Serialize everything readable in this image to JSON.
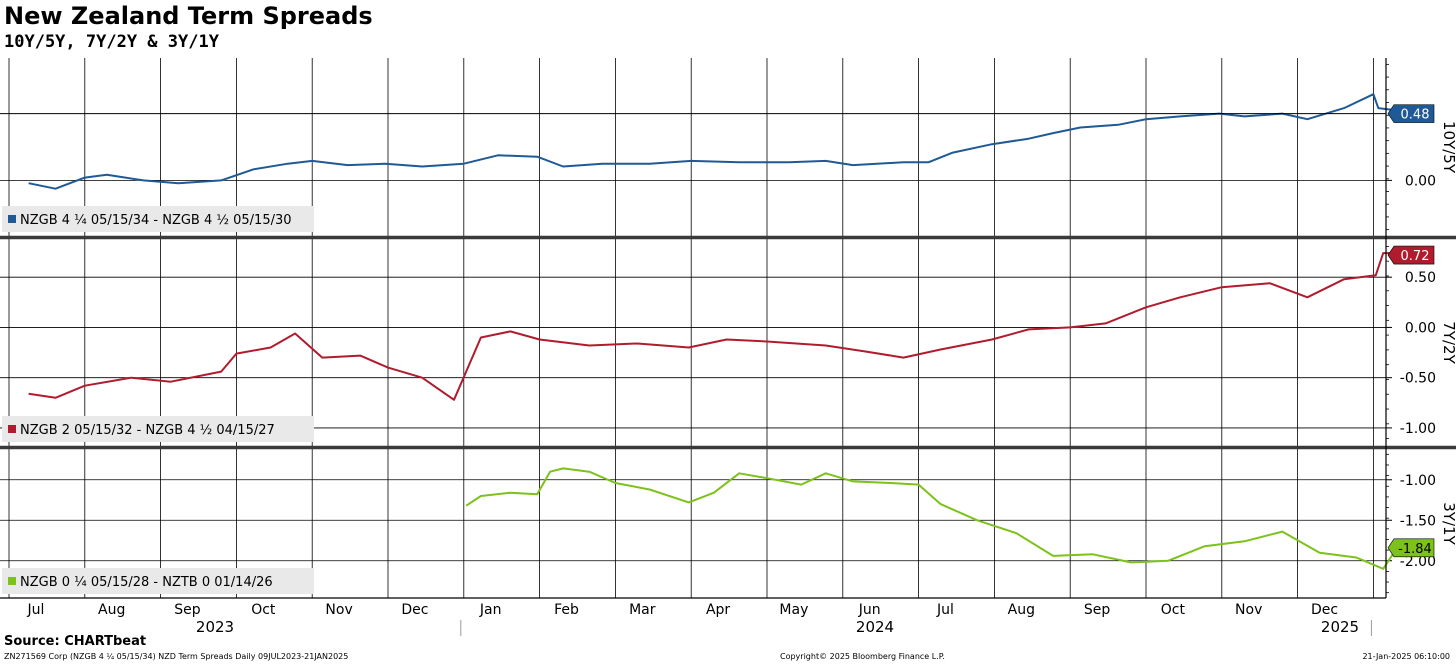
{
  "title": "New Zealand Term Spreads",
  "subtitle": "10Y/5Y, 7Y/2Y & 3Y/1Y",
  "source": "Source: CHARTbeat",
  "footer": {
    "left": "ZN271569 Corp (NZGB 4 ¼ 05/15/34) NZD Term Spreads  Daily 09JUL2023-21JAN2025",
    "center": "Copyright© 2025 Bloomberg Finance L.P.",
    "right": "21-Jan-2025 06:10:00"
  },
  "colors": {
    "top": "#1f5a96",
    "mid": "#b01c2e",
    "bot": "#7cc21a"
  },
  "chart_data": {
    "type": "line",
    "x_months": [
      "Jul",
      "Aug",
      "Sep",
      "Oct",
      "Nov",
      "Dec",
      "Jan",
      "Feb",
      "Mar",
      "Apr",
      "May",
      "Jun",
      "Jul",
      "Aug",
      "Sep",
      "Oct",
      "Nov",
      "Dec",
      "Jan"
    ],
    "x_years": [
      "2023",
      "2024",
      "2025"
    ],
    "x_range": [
      "2023-07-09",
      "2025-01-21"
    ],
    "panels": [
      {
        "axis_label": "10Y/5Y",
        "ticks": [
          {
            "v": 0.0,
            "label": "0.00"
          }
        ],
        "ylim": [
          -0.4,
          0.88
        ],
        "current_value": "0.48",
        "legend": "NZGB 4 ¼ 05/15/34 - NZGB 4 ½ 05/15/30",
        "series": [
          {
            "x": "2023-07-09",
            "y": -0.02
          },
          {
            "x": "2023-07-20",
            "y": -0.06
          },
          {
            "x": "2023-08-01",
            "y": 0.02
          },
          {
            "x": "2023-08-10",
            "y": 0.04
          },
          {
            "x": "2023-08-25",
            "y": 0.0
          },
          {
            "x": "2023-09-08",
            "y": -0.02
          },
          {
            "x": "2023-09-25",
            "y": 0.0
          },
          {
            "x": "2023-10-08",
            "y": 0.08
          },
          {
            "x": "2023-10-22",
            "y": 0.12
          },
          {
            "x": "2023-11-01",
            "y": 0.14
          },
          {
            "x": "2023-11-15",
            "y": 0.11
          },
          {
            "x": "2023-11-30",
            "y": 0.12
          },
          {
            "x": "2023-12-15",
            "y": 0.1
          },
          {
            "x": "2024-01-01",
            "y": 0.12
          },
          {
            "x": "2024-01-15",
            "y": 0.18
          },
          {
            "x": "2024-01-31",
            "y": 0.17
          },
          {
            "x": "2024-02-10",
            "y": 0.1
          },
          {
            "x": "2024-02-25",
            "y": 0.12
          },
          {
            "x": "2024-03-15",
            "y": 0.12
          },
          {
            "x": "2024-04-01",
            "y": 0.14
          },
          {
            "x": "2024-04-20",
            "y": 0.13
          },
          {
            "x": "2024-05-10",
            "y": 0.13
          },
          {
            "x": "2024-05-25",
            "y": 0.14
          },
          {
            "x": "2024-06-05",
            "y": 0.11
          },
          {
            "x": "2024-06-25",
            "y": 0.13
          },
          {
            "x": "2024-07-05",
            "y": 0.13
          },
          {
            "x": "2024-07-15",
            "y": 0.2
          },
          {
            "x": "2024-07-31",
            "y": 0.26
          },
          {
            "x": "2024-08-15",
            "y": 0.3
          },
          {
            "x": "2024-08-25",
            "y": 0.34
          },
          {
            "x": "2024-09-05",
            "y": 0.38
          },
          {
            "x": "2024-09-20",
            "y": 0.4
          },
          {
            "x": "2024-10-01",
            "y": 0.44
          },
          {
            "x": "2024-10-15",
            "y": 0.46
          },
          {
            "x": "2024-10-31",
            "y": 0.48
          },
          {
            "x": "2024-11-10",
            "y": 0.46
          },
          {
            "x": "2024-11-25",
            "y": 0.48
          },
          {
            "x": "2024-12-05",
            "y": 0.44
          },
          {
            "x": "2024-12-20",
            "y": 0.52
          },
          {
            "x": "2025-01-01",
            "y": 0.62
          },
          {
            "x": "2025-01-03",
            "y": 0.52
          },
          {
            "x": "2025-01-12",
            "y": 0.5
          },
          {
            "x": "2025-01-21",
            "y": 0.48
          }
        ]
      },
      {
        "axis_label": "7Y/2Y",
        "ticks": [
          {
            "v": 0.5,
            "label": "0.50"
          },
          {
            "v": 0.0,
            "label": "0.00"
          },
          {
            "v": -0.5,
            "label": "-0.50"
          },
          {
            "v": -1.0,
            "label": "-1.00"
          }
        ],
        "ylim": [
          -1.18,
          0.88
        ],
        "current_value": "0.72",
        "legend": "NZGB 2 05/15/32 - NZGB 4 ½ 04/15/27",
        "series": [
          {
            "x": "2023-07-09",
            "y": -0.66
          },
          {
            "x": "2023-07-20",
            "y": -0.7
          },
          {
            "x": "2023-08-01",
            "y": -0.58
          },
          {
            "x": "2023-08-20",
            "y": -0.5
          },
          {
            "x": "2023-09-05",
            "y": -0.54
          },
          {
            "x": "2023-09-25",
            "y": -0.44
          },
          {
            "x": "2023-10-01",
            "y": -0.26
          },
          {
            "x": "2023-10-15",
            "y": -0.2
          },
          {
            "x": "2023-10-25",
            "y": -0.06
          },
          {
            "x": "2023-11-05",
            "y": -0.3
          },
          {
            "x": "2023-11-20",
            "y": -0.28
          },
          {
            "x": "2023-12-01",
            "y": -0.4
          },
          {
            "x": "2023-12-15",
            "y": -0.5
          },
          {
            "x": "2023-12-28",
            "y": -0.72
          },
          {
            "x": "2024-01-08",
            "y": -0.1
          },
          {
            "x": "2024-01-20",
            "y": -0.04
          },
          {
            "x": "2024-02-01",
            "y": -0.12
          },
          {
            "x": "2024-02-20",
            "y": -0.18
          },
          {
            "x": "2024-03-10",
            "y": -0.16
          },
          {
            "x": "2024-03-31",
            "y": -0.2
          },
          {
            "x": "2024-04-15",
            "y": -0.12
          },
          {
            "x": "2024-05-01",
            "y": -0.14
          },
          {
            "x": "2024-05-25",
            "y": -0.18
          },
          {
            "x": "2024-06-10",
            "y": -0.24
          },
          {
            "x": "2024-06-25",
            "y": -0.3
          },
          {
            "x": "2024-07-10",
            "y": -0.22
          },
          {
            "x": "2024-07-31",
            "y": -0.12
          },
          {
            "x": "2024-08-15",
            "y": -0.02
          },
          {
            "x": "2024-09-01",
            "y": 0.0
          },
          {
            "x": "2024-09-15",
            "y": 0.04
          },
          {
            "x": "2024-10-01",
            "y": 0.2
          },
          {
            "x": "2024-10-15",
            "y": 0.3
          },
          {
            "x": "2024-11-01",
            "y": 0.4
          },
          {
            "x": "2024-11-20",
            "y": 0.44
          },
          {
            "x": "2024-12-05",
            "y": 0.3
          },
          {
            "x": "2024-12-20",
            "y": 0.48
          },
          {
            "x": "2025-01-02",
            "y": 0.52
          },
          {
            "x": "2025-01-05",
            "y": 0.74
          },
          {
            "x": "2025-01-15",
            "y": 0.74
          },
          {
            "x": "2025-01-21",
            "y": 0.72
          }
        ]
      },
      {
        "axis_label": "3Y/1Y",
        "ticks": [
          {
            "v": -1.0,
            "label": "-1.00"
          },
          {
            "v": -1.5,
            "label": "-1.50"
          },
          {
            "v": -2.0,
            "label": "-2.00"
          }
        ],
        "ylim": [
          -2.46,
          -0.62
        ],
        "current_value": "-1.84",
        "legend": "NZGB 0 ¼ 05/15/28 - NZTB 0 01/14/26",
        "series": [
          {
            "x": "2024-01-02",
            "y": -1.32
          },
          {
            "x": "2024-01-08",
            "y": -1.2
          },
          {
            "x": "2024-01-20",
            "y": -1.16
          },
          {
            "x": "2024-01-31",
            "y": -1.18
          },
          {
            "x": "2024-02-05",
            "y": -0.9
          },
          {
            "x": "2024-02-10",
            "y": -0.86
          },
          {
            "x": "2024-02-20",
            "y": -0.9
          },
          {
            "x": "2024-03-01",
            "y": -1.04
          },
          {
            "x": "2024-03-15",
            "y": -1.12
          },
          {
            "x": "2024-03-31",
            "y": -1.28
          },
          {
            "x": "2024-04-10",
            "y": -1.16
          },
          {
            "x": "2024-04-20",
            "y": -0.92
          },
          {
            "x": "2024-05-01",
            "y": -0.98
          },
          {
            "x": "2024-05-15",
            "y": -1.06
          },
          {
            "x": "2024-05-25",
            "y": -0.92
          },
          {
            "x": "2024-06-05",
            "y": -1.02
          },
          {
            "x": "2024-06-20",
            "y": -1.04
          },
          {
            "x": "2024-07-01",
            "y": -1.06
          },
          {
            "x": "2024-07-10",
            "y": -1.3
          },
          {
            "x": "2024-07-25",
            "y": -1.5
          },
          {
            "x": "2024-08-10",
            "y": -1.66
          },
          {
            "x": "2024-08-25",
            "y": -1.94
          },
          {
            "x": "2024-09-10",
            "y": -1.92
          },
          {
            "x": "2024-09-25",
            "y": -2.02
          },
          {
            "x": "2024-10-10",
            "y": -2.0
          },
          {
            "x": "2024-10-25",
            "y": -1.82
          },
          {
            "x": "2024-11-10",
            "y": -1.76
          },
          {
            "x": "2024-11-25",
            "y": -1.64
          },
          {
            "x": "2024-12-10",
            "y": -1.9
          },
          {
            "x": "2024-12-25",
            "y": -1.96
          },
          {
            "x": "2025-01-05",
            "y": -2.1
          },
          {
            "x": "2025-01-12",
            "y": -1.78
          },
          {
            "x": "2025-01-21",
            "y": -1.84
          }
        ]
      }
    ]
  }
}
